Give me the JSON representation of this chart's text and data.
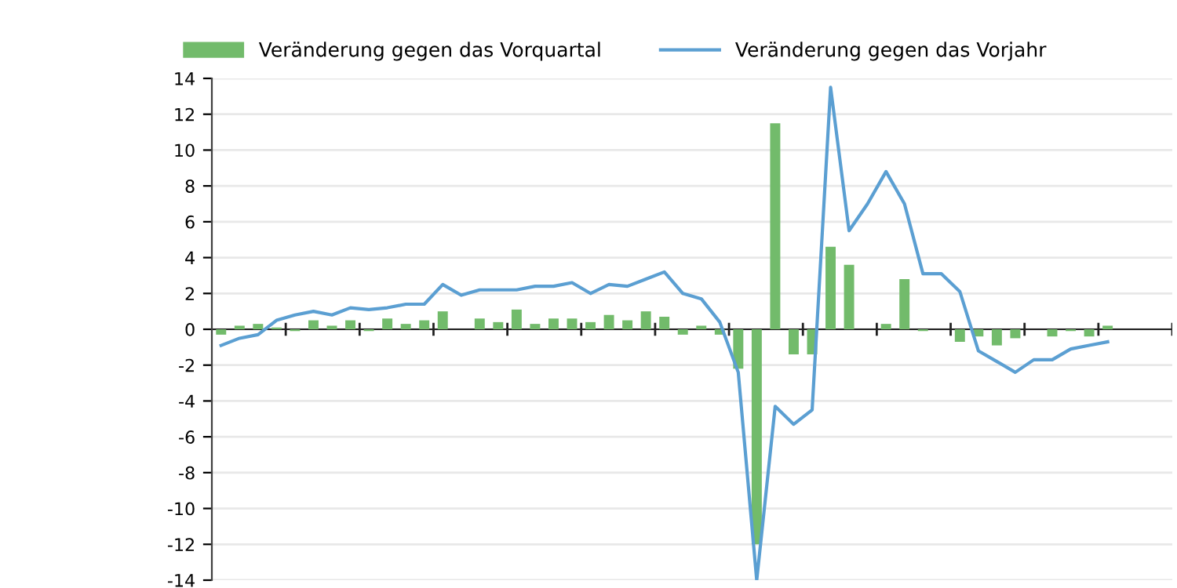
{
  "chart_data": {
    "type": "bar",
    "categories": [
      null,
      null,
      null,
      null,
      null,
      null,
      null,
      null,
      null,
      null,
      null,
      null,
      null,
      null,
      null,
      null,
      null,
      null,
      null,
      null,
      null,
      null,
      null,
      null,
      null,
      null,
      null,
      null,
      null,
      null,
      null,
      null,
      null,
      null,
      null,
      null,
      null,
      null,
      null,
      null,
      null,
      null,
      null,
      null,
      null,
      null,
      null,
      null,
      null,
      null,
      null,
      null
    ],
    "series": [
      {
        "name": "Veränderung gegen das Vorquartal",
        "color": "#72bb6b",
        "values": [
          -0.3,
          0.2,
          0.3,
          0.1,
          -0.1,
          0.5,
          0.2,
          0.5,
          -0.1,
          0.6,
          0.3,
          0.5,
          1.0,
          0,
          0.6,
          0.4,
          1.1,
          0.3,
          0.6,
          0.6,
          0.4,
          0.8,
          0.5,
          1.0,
          0.7,
          -0.3,
          0.2,
          -0.3,
          -2.2,
          -12,
          11.5,
          -1.4,
          -1.4,
          4.6,
          3.6,
          0,
          0.3,
          2.8,
          -0.1,
          0,
          -0.7,
          -0.4,
          -0.9,
          -0.5,
          0,
          -0.4,
          -0.1,
          -0.4,
          0.2,
          null,
          null,
          null
        ]
      },
      {
        "name": "Veränderung gegen das Vorjahr",
        "type": "line",
        "color": "#5b9fd2",
        "values": [
          -0.9,
          -0.5,
          -0.3,
          0.5,
          0.8,
          1.0,
          0.8,
          1.2,
          1.1,
          1.2,
          1.4,
          1.4,
          2.5,
          1.9,
          2.2,
          2.2,
          2.2,
          2.4,
          2.4,
          2.6,
          2.0,
          2.5,
          2.4,
          2.8,
          3.2,
          2.0,
          1.7,
          0.4,
          -2.4,
          -14,
          -4.3,
          -5.3,
          -4.5,
          13.5,
          5.5,
          7.0,
          8.8,
          7.0,
          3.1,
          3.1,
          2.1,
          -1.2,
          -1.8,
          -2.4,
          -1.7,
          -1.7,
          -1.1,
          -0.9,
          -0.7,
          null,
          null,
          null
        ]
      }
    ],
    "ylim": [
      -14,
      14
    ],
    "yticks": [
      -14,
      -12,
      -10,
      -8,
      -6,
      -4,
      -2,
      0,
      2,
      4,
      6,
      8,
      10,
      12,
      14
    ],
    "grid": "y",
    "legend": "top",
    "marker": "none",
    "line_style": "solid"
  }
}
